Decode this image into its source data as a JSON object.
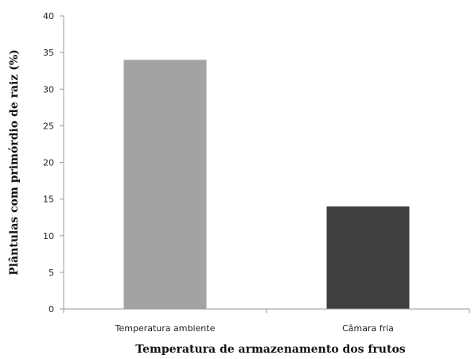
{
  "chart_data": {
    "type": "bar",
    "categories": [
      "Temperatura ambiente",
      "Câmara fria"
    ],
    "values": [
      34,
      14
    ],
    "colors": [
      "#a1a3a4",
      "#404040"
    ],
    "xlabel": "Temperatura de armazenamento dos frutos",
    "ylabel": "Plântulas com primórdio de raiz (%)",
    "ylim": [
      0,
      40
    ],
    "yticks": [
      0,
      5,
      10,
      15,
      20,
      25,
      30,
      35,
      40
    ],
    "grid": false
  }
}
